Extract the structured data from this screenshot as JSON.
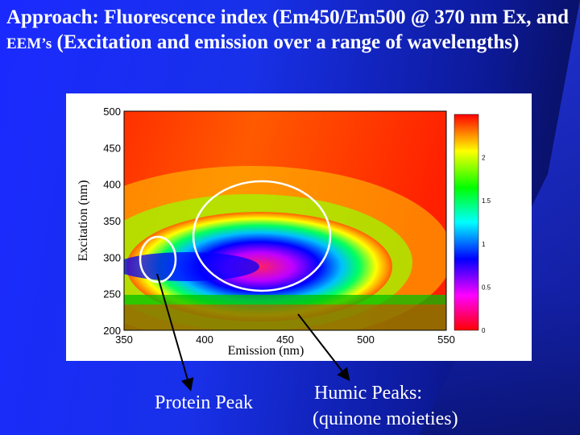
{
  "slide": {
    "title_part1": "Approach: Fluorescence index (Em450/Em500 @ 370 nm Ex, and ",
    "title_small": "EEM’s",
    "title_part2": " (Excitation and emission over a range of wavelengths)"
  },
  "chart_data": {
    "type": "heatmap",
    "xlabel": "Emission (nm)",
    "ylabel": "Excitation (nm)",
    "x_ticks": [
      "350",
      "400",
      "450",
      "500",
      "550"
    ],
    "y_ticks": [
      "200",
      "250",
      "300",
      "350",
      "400",
      "450",
      "500"
    ],
    "xlim": [
      350,
      550
    ],
    "ylim": [
      200,
      500
    ],
    "colorbar_ticks": [
      "0",
      "0.5",
      "1",
      "1.5",
      "2"
    ],
    "colorbar_range": [
      0,
      2.5
    ],
    "colorscale": [
      "#ff0000",
      "#ff00ff",
      "#0000ff",
      "#00ffff",
      "#00ff00",
      "#ffff00",
      "#ff0000"
    ]
  },
  "annotations": {
    "protein_label": "Protein Peak",
    "humic_label_line1": "Humic Peaks:",
    "humic_label_line2": "(quinone moieties)"
  },
  "colors": {
    "background": "#1a2aff",
    "text": "#ffffff"
  }
}
